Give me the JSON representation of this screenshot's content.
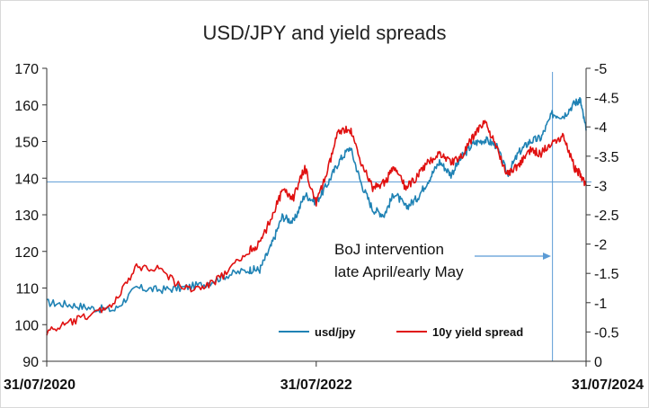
{
  "chart_data": {
    "type": "line",
    "title": "USD/JPY and yield spreads",
    "x_ticks": [
      "31/07/2020",
      "31/07/2022",
      "31/07/2024"
    ],
    "x_range": [
      "2020-07-31",
      "2024-07-31"
    ],
    "y_left": {
      "range": [
        90,
        170
      ],
      "ticks": [
        "90",
        "100",
        "110",
        "120",
        "130",
        "140",
        "150",
        "160",
        "170"
      ]
    },
    "y_right": {
      "range": [
        0,
        -5
      ],
      "inverted": true,
      "ticks": [
        "0",
        "-0.5",
        "-1",
        "-1.5",
        "-2",
        "-2.5",
        "-3",
        "-3.5",
        "-4",
        "-4.5",
        "-5"
      ]
    },
    "grid": false,
    "legend_position": "bottom-right",
    "annotation": {
      "lines": [
        "BoJ intervention",
        "late April/early May"
      ]
    },
    "reference_line": {
      "axis": "left",
      "value": 139
    },
    "series": [
      {
        "name": "usd/jpy",
        "axis": "left",
        "color": "#1f82b4",
        "x": [
          "2020-07-31",
          "2020-09-30",
          "2020-11-30",
          "2021-01-31",
          "2021-03-31",
          "2021-05-31",
          "2021-07-31",
          "2021-09-30",
          "2021-11-30",
          "2022-01-31",
          "2022-02-28",
          "2022-03-31",
          "2022-04-30",
          "2022-05-31",
          "2022-06-30",
          "2022-07-31",
          "2022-08-31",
          "2022-09-30",
          "2022-10-31",
          "2022-11-30",
          "2022-12-31",
          "2023-01-31",
          "2023-02-28",
          "2023-03-31",
          "2023-04-30",
          "2023-05-31",
          "2023-06-30",
          "2023-07-31",
          "2023-08-31",
          "2023-09-30",
          "2023-10-31",
          "2023-11-30",
          "2023-12-31",
          "2024-01-31",
          "2024-02-29",
          "2024-03-31",
          "2024-04-30",
          "2024-05-31",
          "2024-06-30",
          "2024-07-15",
          "2024-07-31"
        ],
        "values": [
          106,
          105.5,
          104.5,
          104,
          110,
          109.5,
          110,
          111,
          113.5,
          115,
          115,
          121.5,
          129.5,
          128,
          135.5,
          133.5,
          138.5,
          144.5,
          148.5,
          138.5,
          131.5,
          130,
          136,
          132,
          134.5,
          139.5,
          144.5,
          141,
          146,
          149.5,
          150.5,
          149,
          141,
          147,
          150,
          151,
          157.5,
          157,
          160.5,
          161.5,
          153
        ]
      },
      {
        "name": "10y yield spread",
        "axis": "right",
        "color": "#e01010",
        "x": [
          "2020-07-31",
          "2020-09-30",
          "2020-11-30",
          "2021-01-31",
          "2021-03-31",
          "2021-05-31",
          "2021-07-31",
          "2021-09-30",
          "2021-11-30",
          "2022-01-31",
          "2022-02-28",
          "2022-03-31",
          "2022-04-30",
          "2022-05-31",
          "2022-06-30",
          "2022-07-31",
          "2022-08-31",
          "2022-09-30",
          "2022-10-31",
          "2022-11-30",
          "2022-12-31",
          "2023-01-31",
          "2023-02-28",
          "2023-03-31",
          "2023-04-30",
          "2023-05-31",
          "2023-06-30",
          "2023-07-31",
          "2023-08-31",
          "2023-09-30",
          "2023-10-31",
          "2023-11-30",
          "2023-12-31",
          "2024-01-31",
          "2024-02-29",
          "2024-03-31",
          "2024-04-30",
          "2024-05-31",
          "2024-06-30",
          "2024-07-15",
          "2024-07-31"
        ],
        "values": [
          -0.5,
          -0.65,
          -0.8,
          -1.0,
          -1.6,
          -1.6,
          -1.25,
          -1.25,
          -1.5,
          -1.9,
          -2.0,
          -2.45,
          -2.9,
          -2.8,
          -3.3,
          -2.7,
          -3.25,
          -3.95,
          -3.95,
          -3.4,
          -2.95,
          -3.05,
          -3.3,
          -2.95,
          -3.15,
          -3.4,
          -3.55,
          -3.4,
          -3.5,
          -3.85,
          -4.1,
          -3.65,
          -3.2,
          -3.35,
          -3.6,
          -3.55,
          -3.75,
          -3.85,
          -3.3,
          -3.2,
          -3.0
        ]
      }
    ]
  }
}
